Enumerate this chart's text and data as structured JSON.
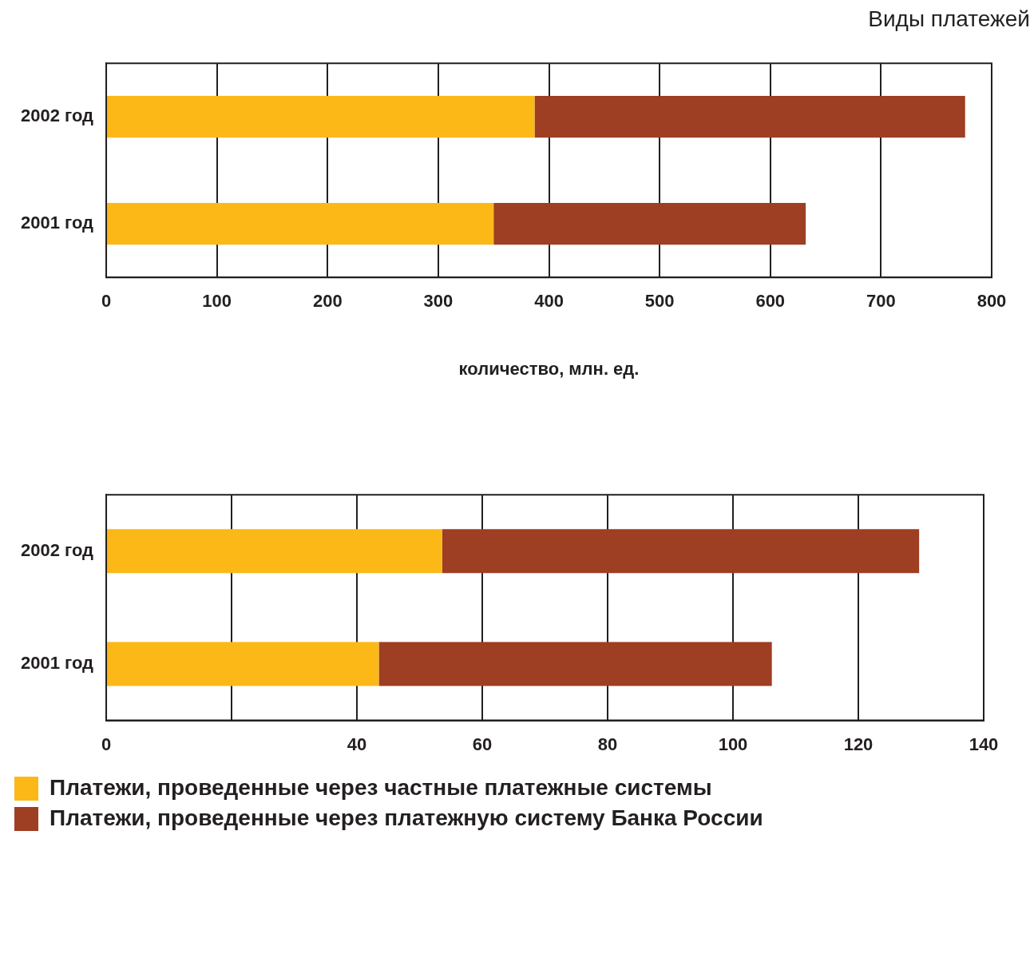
{
  "chart_data": [
    {
      "type": "bar",
      "orientation": "horizontal",
      "stacked": true,
      "title": "Виды платежей",
      "xlabel": "количество, млн. ед.",
      "categories": [
        "2002 год",
        "2001 год"
      ],
      "xlim": [
        0,
        800
      ],
      "xticks": [
        0,
        100,
        200,
        300,
        400,
        500,
        600,
        700,
        800
      ],
      "grid": "x",
      "legend": false,
      "series": [
        {
          "color": "#fbb817",
          "values": [
            387,
            350
          ]
        },
        {
          "color": "#9e3e22",
          "values": [
            389,
            282
          ]
        }
      ]
    },
    {
      "type": "bar",
      "orientation": "horizontal",
      "stacked": true,
      "categories": [
        "2002 год",
        "2001 год"
      ],
      "xlim": [
        0,
        140
      ],
      "xticks": [
        0,
        {
          "value": 20,
          "label": null
        },
        40,
        60,
        80,
        100,
        120,
        140
      ],
      "grid": "x",
      "legend": "bottom",
      "series": [
        {
          "name": "Платежи, проведенные через частные платежные системы",
          "color": "#fbb817",
          "values": [
            53.6,
            43.5
          ]
        },
        {
          "name": "Платежи, проведенные через платежную систему Банка России",
          "color": "#9e3e22",
          "values": [
            76.1,
            62.7
          ]
        }
      ]
    }
  ]
}
